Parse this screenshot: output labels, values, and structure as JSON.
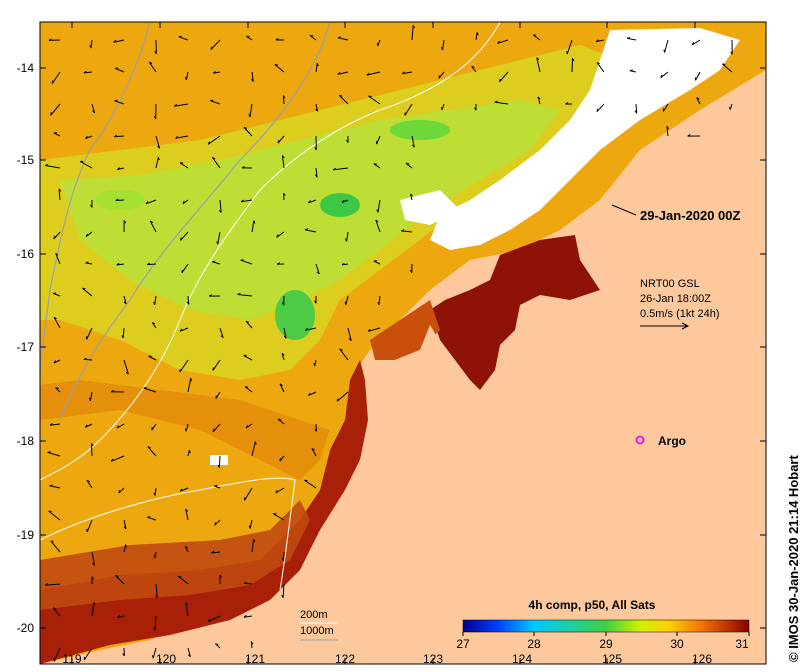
{
  "map": {
    "x_ticks": [
      "119",
      "120",
      "121",
      "122",
      "123",
      "124",
      "125",
      "126"
    ],
    "y_ticks": [
      "-14",
      "-15",
      "-16",
      "-17",
      "-18",
      "-19",
      "-20"
    ],
    "timestamp": "29-Jan-2020 00Z",
    "current_legend": {
      "line1": "NRT00 GSL",
      "line2": "26-Jan 18:00Z",
      "line3": "0.5m/s (1kt 24h)"
    },
    "argo_label": "Argo",
    "depth_legend": {
      "contour_200": "200m",
      "contour_1000": "1000m"
    },
    "colorbar": {
      "title": "4h comp, p50, All Sats",
      "ticks": [
        "27",
        "28",
        "29",
        "30",
        "31"
      ]
    },
    "credit": "© IMOS 30-Jan-2020 21:14 Hobart",
    "colors": {
      "land": "#fdc89b",
      "cloud": "#ffffff",
      "warm": "#a01c06",
      "mid": "#e8a00c",
      "cool": "#b8e83a",
      "green": "#3cc844",
      "argo": "#e020e0"
    },
    "icons": [
      "current-arrow-icon",
      "argo-float-icon"
    ]
  }
}
